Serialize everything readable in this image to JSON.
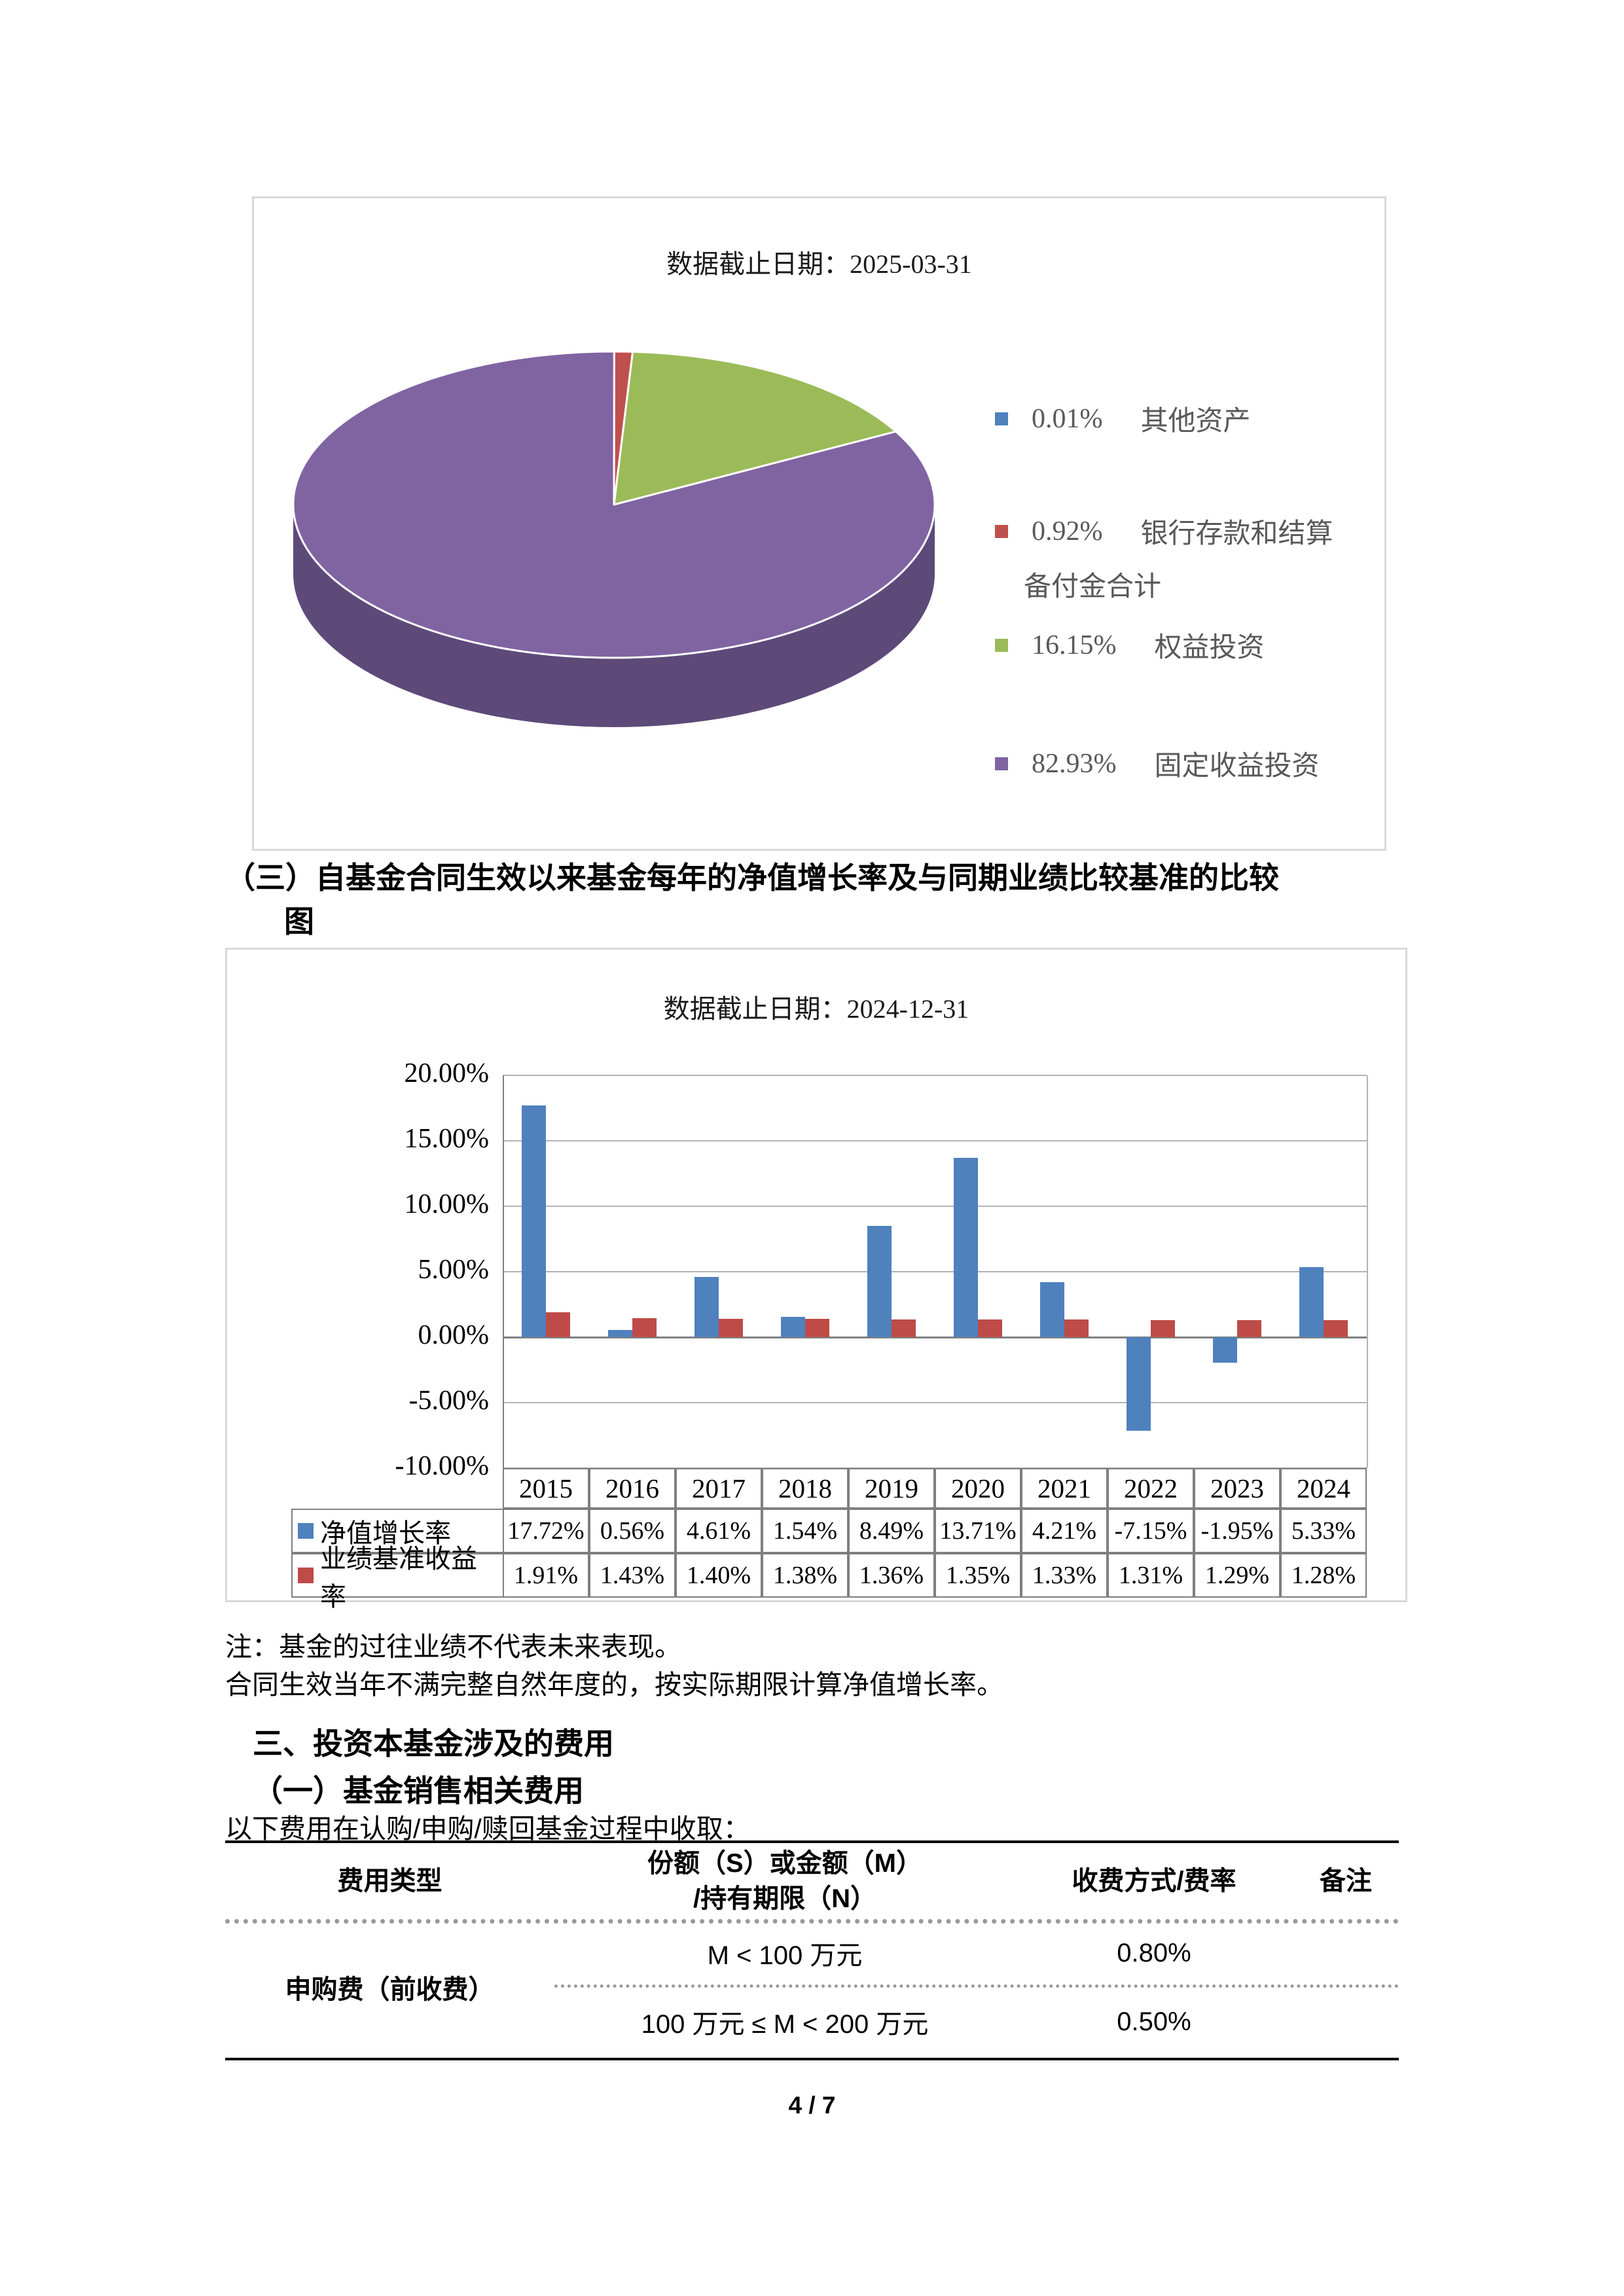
{
  "page": {
    "footer": "4 / 7"
  },
  "headings": {
    "compare_line1": "（三）自基金合同生效以来基金每年的净值增长率及与同期业绩比较基准的比较",
    "compare_line2": "图",
    "fees_title": "三、投资本基金涉及的费用",
    "fees_sub": "（一）基金销售相关费用",
    "fees_intro": "以下费用在认购/申购/赎回基金过程中收取："
  },
  "notes": {
    "line1": "注：基金的过往业绩不代表未来表现。",
    "line2": "合同生效当年不满完整自然年度的，按实际期限计算净值增长率。"
  },
  "fees_table": {
    "col1": "费用类型",
    "col2_line1": "份额（S）或金额（M）",
    "col2_line2": "/持有期限（N）",
    "col3": "收费方式/费率",
    "col4": "备注",
    "fee_type": "申购费（前收费）",
    "rows": [
      {
        "condition": "M < 100 万元",
        "rate": "0.80%",
        "note": ""
      },
      {
        "condition": "100 万元 ≤ M < 200 万元",
        "rate": "0.50%",
        "note": ""
      }
    ]
  },
  "chart_data": [
    {
      "type": "pie",
      "title": "数据截止日期：2025-03-31",
      "labels": [
        "其他资产",
        "银行存款和结算备付金合计",
        "权益投资",
        "固定收益投资"
      ],
      "values": [
        0.01,
        0.92,
        16.15,
        82.93
      ],
      "value_labels": [
        "0.01%",
        "0.92%",
        "16.15%",
        "82.93%"
      ],
      "colors": [
        "#4F81BD",
        "#C0504D",
        "#9BBB59",
        "#8064A2"
      ],
      "side_color": "#5D4A79",
      "legend_label_lines": [
        [
          "其他资产"
        ],
        [
          "银行存款和结算",
          "备付金合计"
        ],
        [
          "权益投资"
        ],
        [
          "固定收益投资"
        ]
      ],
      "legend_position": "right",
      "start_angle": "top-clockwise",
      "effect_3d": true
    },
    {
      "type": "bar",
      "title": "数据截止日期：2024-12-31",
      "categories": [
        "2015",
        "2016",
        "2017",
        "2018",
        "2019",
        "2020",
        "2021",
        "2022",
        "2023",
        "2024"
      ],
      "series": [
        {
          "name": "净值增长率",
          "color": "#4F81BD",
          "values": [
            17.72,
            0.56,
            4.61,
            1.54,
            8.49,
            13.71,
            4.21,
            -7.15,
            -1.95,
            5.33
          ],
          "display": [
            "17.72%",
            "0.56%",
            "4.61%",
            "1.54%",
            "8.49%",
            "13.71%",
            "4.21%",
            "-7.15%",
            "-1.95%",
            "5.33%"
          ]
        },
        {
          "name": "业绩基准收益率",
          "color": "#BE4B48",
          "values": [
            1.91,
            1.43,
            1.4,
            1.38,
            1.36,
            1.35,
            1.33,
            1.31,
            1.29,
            1.28
          ],
          "display": [
            "1.91%",
            "1.43%",
            "1.40%",
            "1.38%",
            "1.36%",
            "1.35%",
            "1.33%",
            "1.31%",
            "1.29%",
            "1.28%"
          ]
        }
      ],
      "ylim": [
        -10,
        20
      ],
      "ytick_step": 5,
      "yticks": [
        "20.00%",
        "15.00%",
        "10.00%",
        "5.00%",
        "0.00%",
        "-5.00%",
        "-10.00%"
      ],
      "grid": true,
      "legend_position": "table-left"
    }
  ]
}
